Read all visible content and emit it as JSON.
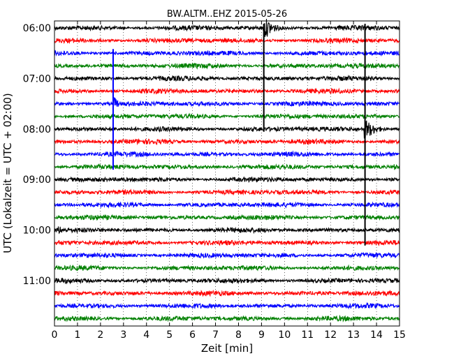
{
  "chart_data": {
    "type": "line",
    "title": "BW.ALTM..EHZ 2015-05-26",
    "xlabel": "Zeit  [min]",
    "ylabel": "UTC (Lokalzeit = UTC + 02:00)",
    "xlim": [
      0,
      15
    ],
    "x_ticks": [
      "0",
      "1",
      "2",
      "3",
      "4",
      "5",
      "6",
      "7",
      "8",
      "9",
      "10",
      "11",
      "12",
      "13",
      "14",
      "15"
    ],
    "y_ticks": [
      "06:00",
      "07:00",
      "08:00",
      "09:00",
      "10:00",
      "11:00"
    ],
    "grid": true,
    "trace_colors": [
      "#000000",
      "#ff0000",
      "#0000ff",
      "#008000"
    ],
    "series": [
      {
        "start": "06:00"
      },
      {
        "start": "06:15"
      },
      {
        "start": "06:30"
      },
      {
        "start": "06:45"
      },
      {
        "start": "07:00"
      },
      {
        "start": "07:15"
      },
      {
        "start": "07:30"
      },
      {
        "start": "07:45"
      },
      {
        "start": "08:00"
      },
      {
        "start": "08:15"
      },
      {
        "start": "08:30"
      },
      {
        "start": "08:45"
      },
      {
        "start": "09:00"
      },
      {
        "start": "09:15"
      },
      {
        "start": "09:30"
      },
      {
        "start": "09:45"
      },
      {
        "start": "10:00"
      },
      {
        "start": "10:15"
      },
      {
        "start": "10:30"
      },
      {
        "start": "10:45"
      },
      {
        "start": "11:00"
      },
      {
        "start": "11:15"
      },
      {
        "start": "11:30"
      },
      {
        "start": "11:45"
      }
    ],
    "events": [
      {
        "trace": 0,
        "t_min": 9.15,
        "amplitude": "large",
        "duration_min": 0.9
      },
      {
        "trace": 6,
        "t_min": 2.6,
        "amplitude": "medium",
        "duration_min": 0.5
      },
      {
        "trace": 8,
        "t_min": 13.5,
        "amplitude": "large",
        "duration_min": 1.0
      },
      {
        "trace": 11,
        "t_min": 14.8,
        "amplitude": "small",
        "duration_min": 0.3
      },
      {
        "trace": 16,
        "t_min": 0.2,
        "amplitude": "small",
        "duration_min": 0.8
      }
    ],
    "spikes": [
      {
        "t_min": 2.55,
        "from_trace": 2,
        "to_trace": 11
      },
      {
        "t_min": 9.1,
        "from_trace": 0,
        "to_trace": 8
      },
      {
        "t_min": 13.5,
        "from_trace": 0,
        "to_trace": 17
      }
    ]
  }
}
